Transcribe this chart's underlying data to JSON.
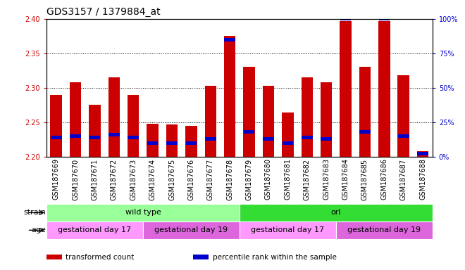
{
  "title": "GDS3157 / 1379884_at",
  "samples": [
    "GSM187669",
    "GSM187670",
    "GSM187671",
    "GSM187672",
    "GSM187673",
    "GSM187674",
    "GSM187675",
    "GSM187676",
    "GSM187677",
    "GSM187678",
    "GSM187679",
    "GSM187680",
    "GSM187681",
    "GSM187682",
    "GSM187683",
    "GSM187684",
    "GSM187685",
    "GSM187686",
    "GSM187687",
    "GSM187688"
  ],
  "transformed_count": [
    2.29,
    2.308,
    2.275,
    2.315,
    2.29,
    2.248,
    2.247,
    2.245,
    2.303,
    2.375,
    2.33,
    2.303,
    2.264,
    2.315,
    2.308,
    2.397,
    2.33,
    2.397,
    2.318,
    2.208
  ],
  "percentile_rank": [
    14,
    15,
    14,
    16,
    14,
    10,
    10,
    10,
    13,
    85,
    18,
    13,
    10,
    14,
    13,
    100,
    18,
    100,
    15,
    2
  ],
  "ymin": 2.2,
  "ymax": 2.4,
  "yticks": [
    2.2,
    2.25,
    2.3,
    2.35,
    2.4
  ],
  "right_yticks": [
    0,
    25,
    50,
    75,
    100
  ],
  "right_ylabels": [
    "0%",
    "25%",
    "50%",
    "75%",
    "100%"
  ],
  "bar_color": "#cc0000",
  "percentile_color": "#0000cc",
  "strain_groups": [
    {
      "label": "wild type",
      "start": 0,
      "end": 10,
      "color": "#99ff99"
    },
    {
      "label": "orl",
      "start": 10,
      "end": 20,
      "color": "#33dd33"
    }
  ],
  "age_groups": [
    {
      "label": "gestational day 17",
      "start": 0,
      "end": 5,
      "color": "#ff99ff"
    },
    {
      "label": "gestational day 19",
      "start": 5,
      "end": 10,
      "color": "#dd66dd"
    },
    {
      "label": "gestational day 17",
      "start": 10,
      "end": 15,
      "color": "#ff99ff"
    },
    {
      "label": "gestational day 19",
      "start": 15,
      "end": 20,
      "color": "#dd66dd"
    }
  ],
  "legend_items": [
    {
      "label": "transformed count",
      "color": "#cc0000"
    },
    {
      "label": "percentile rank within the sample",
      "color": "#0000cc"
    }
  ],
  "ylabel_color": "#cc0000",
  "right_ylabel_color": "#0000cc",
  "title_fontsize": 10,
  "tick_fontsize": 7,
  "label_fontsize": 8,
  "row_label_fontsize": 8,
  "bar_width": 0.6
}
